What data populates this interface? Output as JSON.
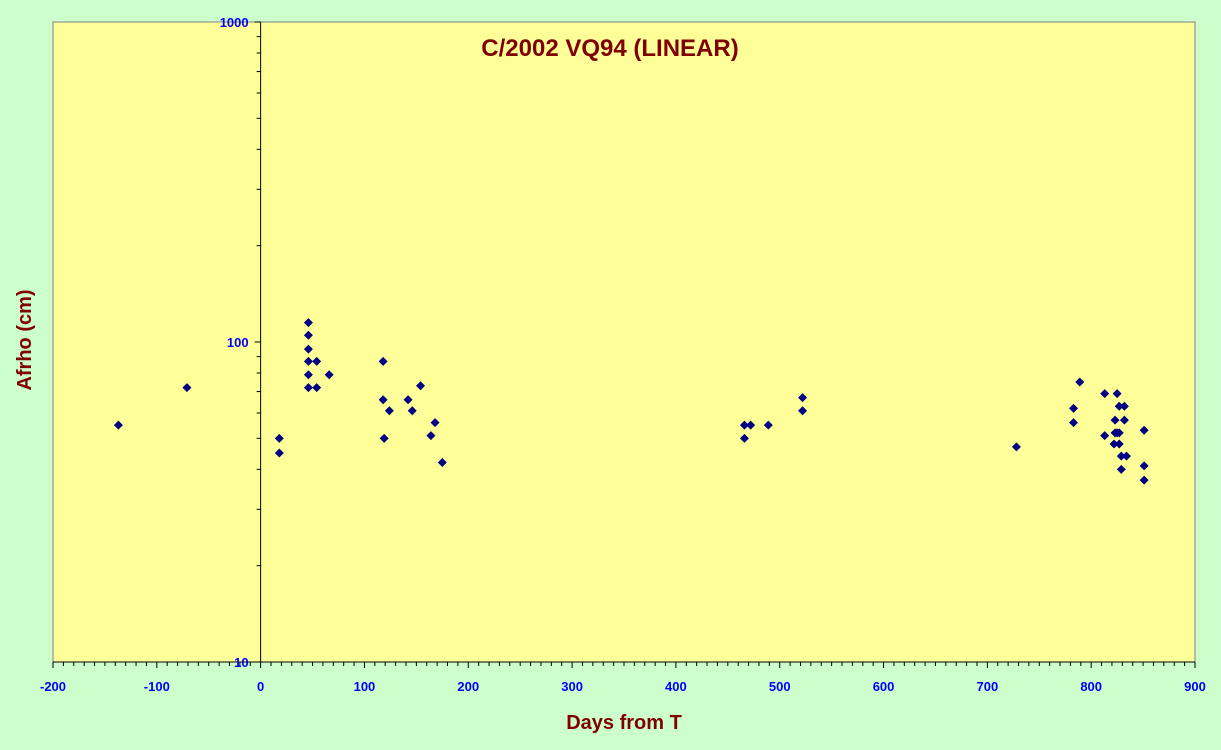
{
  "colors": {
    "background": "#ccffcc",
    "plot_area": "#ffff99",
    "marker": "#000080",
    "title": "#800000",
    "tick_labels": "#0000ff",
    "axis": "#000000"
  },
  "chart_data": {
    "type": "scatter",
    "title": "C/2002 VQ94 (LINEAR)",
    "xlabel": "Days from T",
    "ylabel": "Afrho (cm)",
    "xlim": [
      -200,
      900
    ],
    "ylim": [
      10,
      1000
    ],
    "yscale": "log",
    "x_ticks": [
      -200,
      -100,
      0,
      100,
      200,
      300,
      400,
      500,
      600,
      700,
      800,
      900
    ],
    "y_ticks": [
      10,
      100,
      1000
    ],
    "x_tick_labels": [
      "-200",
      "-100",
      "0",
      "100",
      "200",
      "300",
      "400",
      "500",
      "600",
      "700",
      "800",
      "900"
    ],
    "y_tick_labels": [
      "10",
      "100",
      "1000"
    ],
    "grid": false,
    "legend": "none",
    "marker": "diamond",
    "points": [
      [
        -137,
        55
      ],
      [
        -71,
        72
      ],
      [
        18,
        50
      ],
      [
        18,
        45
      ],
      [
        46,
        115
      ],
      [
        46,
        105
      ],
      [
        46,
        95
      ],
      [
        46,
        87
      ],
      [
        46,
        79
      ],
      [
        46,
        72
      ],
      [
        54,
        87
      ],
      [
        54,
        72
      ],
      [
        66,
        79
      ],
      [
        118,
        87
      ],
      [
        118,
        66
      ],
      [
        119,
        50
      ],
      [
        124,
        61
      ],
      [
        142,
        66
      ],
      [
        146,
        61
      ],
      [
        154,
        73
      ],
      [
        164,
        51
      ],
      [
        168,
        56
      ],
      [
        175,
        42
      ],
      [
        466,
        50
      ],
      [
        466,
        55
      ],
      [
        472,
        55
      ],
      [
        489,
        55
      ],
      [
        522,
        67
      ],
      [
        522,
        61
      ],
      [
        728,
        47
      ],
      [
        783,
        62
      ],
      [
        783,
        56
      ],
      [
        789,
        75
      ],
      [
        813,
        69
      ],
      [
        813,
        51
      ],
      [
        822,
        48
      ],
      [
        823,
        57
      ],
      [
        823,
        52
      ],
      [
        825,
        69
      ],
      [
        825,
        52
      ],
      [
        827,
        48
      ],
      [
        827,
        63
      ],
      [
        827,
        52
      ],
      [
        829,
        40
      ],
      [
        829,
        44
      ],
      [
        832,
        63
      ],
      [
        832,
        57
      ],
      [
        834,
        44
      ],
      [
        851,
        53
      ],
      [
        851,
        41
      ],
      [
        851,
        37
      ]
    ]
  }
}
